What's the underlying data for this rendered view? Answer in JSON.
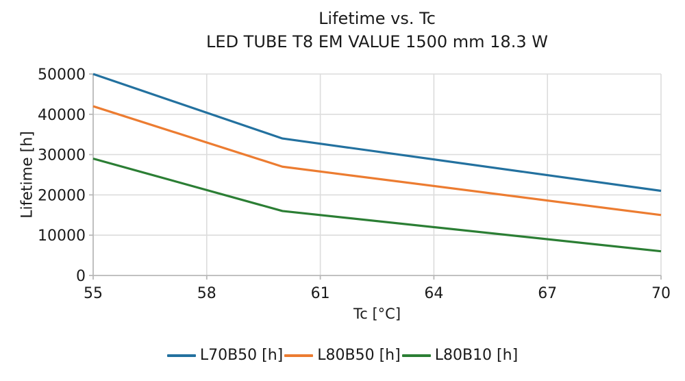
{
  "chart_data": {
    "type": "line",
    "title": "Lifetime vs. Tc",
    "subtitle": "LED TUBE T8 EM VALUE 1500 mm 18.3 W",
    "xlabel": "Tc [°C]",
    "ylabel": "Lifetime [h]",
    "x": [
      55,
      60,
      70
    ],
    "series": [
      {
        "name": "L70B50 [h]",
        "color": "#23719f",
        "values": [
          50000,
          34000,
          21000
        ]
      },
      {
        "name": "L80B50 [h]",
        "color": "#ec7c31",
        "values": [
          42000,
          27000,
          15000
        ]
      },
      {
        "name": "L80B10 [h]",
        "color": "#2b7e34",
        "values": [
          29000,
          16000,
          6000
        ]
      }
    ],
    "xlim": [
      55,
      70
    ],
    "ylim": [
      0,
      50000
    ],
    "xticks": [
      55,
      58,
      61,
      64,
      67,
      70
    ],
    "yticks": [
      0,
      10000,
      20000,
      30000,
      40000,
      50000
    ],
    "grid": true,
    "legend_position": "bottom",
    "grid_color": "#dcdcdc",
    "spine_color": "#b8b8b8",
    "text_color": "#1a1a1a",
    "line_width": 3.2
  }
}
